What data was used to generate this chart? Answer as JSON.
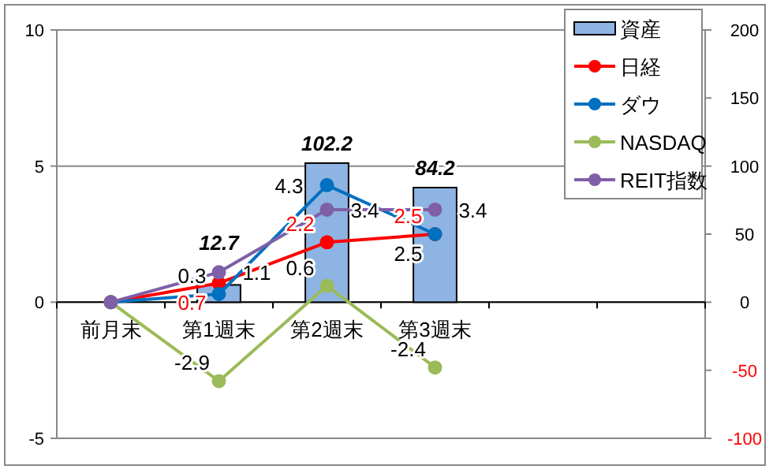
{
  "chart_data": {
    "type": "line",
    "categories": [
      "前月末",
      "第1週末",
      "第2週末",
      "第3週末",
      null,
      null
    ],
    "series": [
      {
        "name": "資産",
        "type": "bar",
        "axis": "y2",
        "color": "#8eb4e3",
        "values": [
          null,
          12.7,
          102.2,
          84.2,
          null,
          null
        ],
        "value_labels": [
          null,
          "12.7",
          "102.2",
          "84.2",
          null,
          null
        ]
      },
      {
        "name": "日経",
        "color": "#ff0000",
        "values": [
          0,
          0.7,
          2.2,
          2.5,
          null,
          null
        ],
        "value_labels": [
          null,
          "0.7",
          "2.2",
          "2.5",
          null,
          null
        ]
      },
      {
        "name": "ダウ",
        "color": "#0070c0",
        "values": [
          0,
          0.3,
          4.3,
          2.5,
          null,
          null
        ],
        "value_labels": [
          null,
          "0.3",
          "4.3",
          "2.5",
          null,
          null
        ]
      },
      {
        "name": "NASDAQ",
        "color": "#9bbb59",
        "values": [
          0,
          -2.9,
          0.6,
          -2.4,
          null,
          null
        ],
        "value_labels": [
          null,
          "-2.9",
          "0.6",
          "-2.4",
          null,
          null
        ]
      },
      {
        "name": "REIT指数",
        "color": "#7f5fa8",
        "values": [
          0,
          1.1,
          3.4,
          3.4,
          null,
          null
        ],
        "value_labels": [
          null,
          "1.1",
          "3.4",
          "3.4",
          null,
          null
        ]
      }
    ],
    "ylim": [
      -5,
      10
    ],
    "yticks": [
      -5,
      0,
      5,
      10
    ],
    "y2lim": [
      -100,
      200
    ],
    "y2ticks": [
      -100,
      -50,
      0,
      50,
      100,
      150,
      200
    ],
    "grid": "y",
    "legend": "top right",
    "marker": "circle"
  }
}
